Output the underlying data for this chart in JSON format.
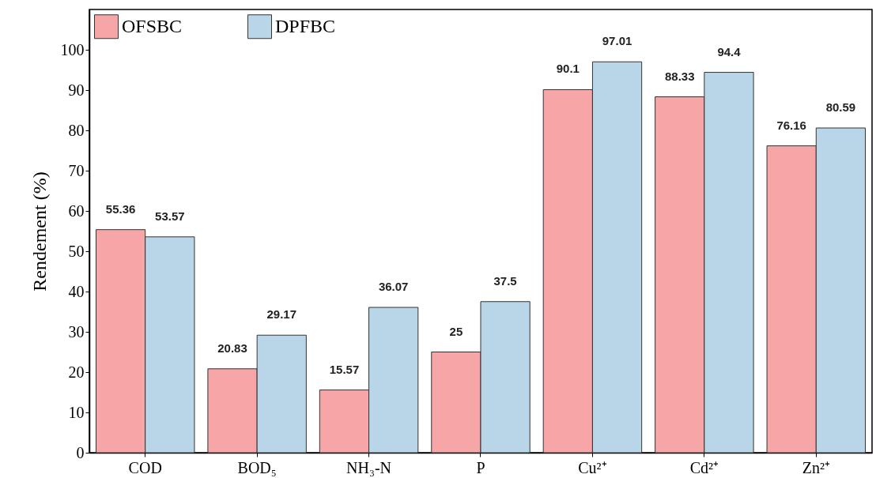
{
  "chart_data": {
    "type": "bar",
    "ylabel": "Rendement (%)",
    "categories": [
      "COD",
      "BOD₅",
      "NH₃-N",
      "P",
      "Cu²⁺",
      "Cd²⁺",
      "Zn²⁺"
    ],
    "series": [
      {
        "name": "OFSBC",
        "color": "#f7a6a8",
        "values": [
          55.36,
          20.83,
          15.57,
          25,
          90.1,
          88.33,
          76.16
        ]
      },
      {
        "name": "DPFBC",
        "color": "#b9d6e8",
        "values": [
          53.57,
          29.17,
          36.07,
          37.5,
          97.01,
          94.4,
          80.59
        ]
      }
    ],
    "ylim": [
      0,
      110
    ],
    "yticks": [
      0,
      10,
      20,
      30,
      40,
      50,
      60,
      70,
      80,
      90,
      100
    ],
    "data_labels": true,
    "legend": "top left",
    "grid": false
  }
}
